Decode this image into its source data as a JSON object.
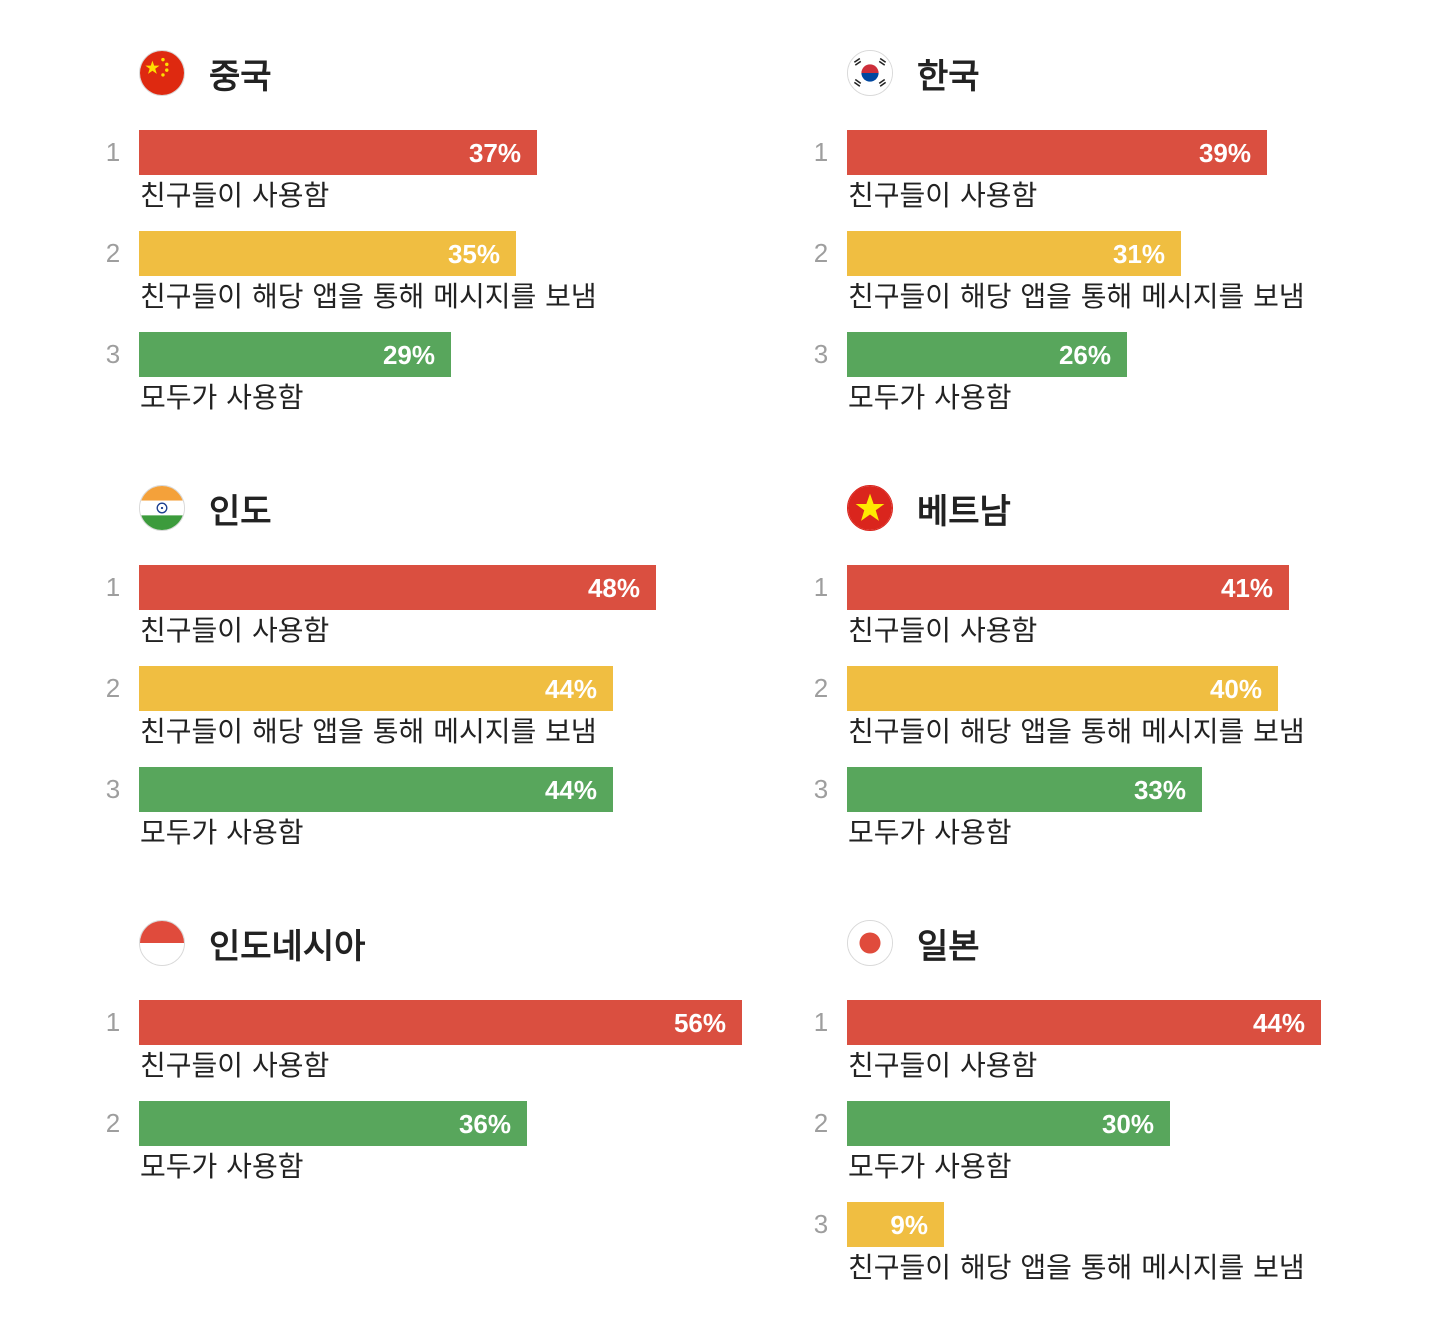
{
  "colors": {
    "red": "#da4f40",
    "yellow": "#f0be41",
    "green": "#58a65c"
  },
  "chart_data": [
    {
      "type": "bar",
      "title": "중국",
      "flag": "china-flag-icon",
      "categories": [
        "친구들이 사용함",
        "친구들이 해당 앱을 통해 메시지를 보냄",
        "모두가 사용함"
      ],
      "ranks": [
        "1",
        "2",
        "3"
      ],
      "values": [
        37,
        35,
        29
      ],
      "labels": [
        "37%",
        "35%",
        "29%"
      ],
      "colors": [
        "#da4f40",
        "#f0be41",
        "#58a65c"
      ]
    },
    {
      "type": "bar",
      "title": "한국",
      "flag": "korea-flag-icon",
      "categories": [
        "친구들이 사용함",
        "친구들이 해당 앱을 통해 메시지를 보냄",
        "모두가 사용함"
      ],
      "ranks": [
        "1",
        "2",
        "3"
      ],
      "values": [
        39,
        31,
        26
      ],
      "labels": [
        "39%",
        "31%",
        "26%"
      ],
      "colors": [
        "#da4f40",
        "#f0be41",
        "#58a65c"
      ]
    },
    {
      "type": "bar",
      "title": "인도",
      "flag": "india-flag-icon",
      "categories": [
        "친구들이 사용함",
        "친구들이 해당 앱을 통해 메시지를 보냄",
        "모두가 사용함"
      ],
      "ranks": [
        "1",
        "2",
        "3"
      ],
      "values": [
        48,
        44,
        44
      ],
      "labels": [
        "48%",
        "44%",
        "44%"
      ],
      "colors": [
        "#da4f40",
        "#f0be41",
        "#58a65c"
      ]
    },
    {
      "type": "bar",
      "title": "베트남",
      "flag": "vietnam-flag-icon",
      "categories": [
        "친구들이 사용함",
        "친구들이 해당 앱을 통해 메시지를 보냄",
        "모두가 사용함"
      ],
      "ranks": [
        "1",
        "2",
        "3"
      ],
      "values": [
        41,
        40,
        33
      ],
      "labels": [
        "41%",
        "40%",
        "33%"
      ],
      "colors": [
        "#da4f40",
        "#f0be41",
        "#58a65c"
      ]
    },
    {
      "type": "bar",
      "title": "인도네시아",
      "flag": "indonesia-flag-icon",
      "categories": [
        "친구들이 사용함",
        "모두가 사용함"
      ],
      "ranks": [
        "1",
        "2"
      ],
      "values": [
        56,
        36
      ],
      "labels": [
        "56%",
        "36%"
      ],
      "colors": [
        "#da4f40",
        "#58a65c"
      ]
    },
    {
      "type": "bar",
      "title": "일본",
      "flag": "japan-flag-icon",
      "categories": [
        "친구들이 사용함",
        "모두가 사용함",
        "친구들이 해당 앱을 통해 메시지를 보냄"
      ],
      "ranks": [
        "1",
        "2",
        "3"
      ],
      "values": [
        44,
        30,
        9
      ],
      "labels": [
        "44%",
        "30%",
        "9%"
      ],
      "colors": [
        "#da4f40",
        "#58a65c",
        "#f0be41"
      ]
    }
  ]
}
